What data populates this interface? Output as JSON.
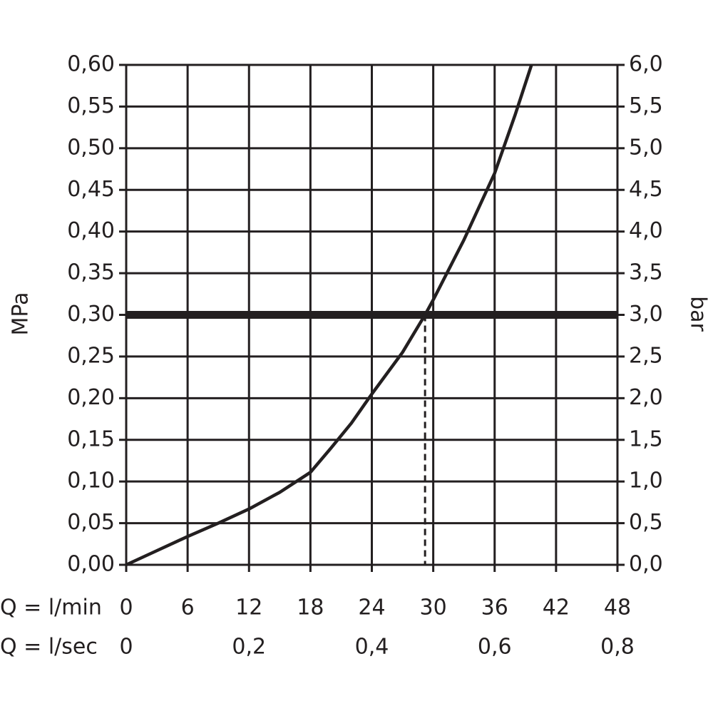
{
  "chart_data": {
    "type": "line",
    "y_label": "MPa",
    "y2_label": "bar",
    "x_label": "Q = l/min",
    "x2_label": "Q = l/sec",
    "series": [
      {
        "color": "#231f20",
        "x": [
          0,
          3,
          6,
          9,
          12,
          15,
          18,
          20,
          22,
          24,
          27,
          29.2,
          30,
          33,
          36,
          38,
          39.6
        ],
        "values": [
          0,
          0.017,
          0.034,
          0.05,
          0.067,
          0.087,
          0.111,
          0.14,
          0.17,
          0.205,
          0.255,
          0.3,
          0.318,
          0.39,
          0.47,
          0.54,
          0.6
        ]
      }
    ],
    "reference": {
      "y": 0.3,
      "x": 29.2
    },
    "xlim": [
      0,
      48
    ],
    "xticks": [
      0,
      6,
      12,
      18,
      24,
      30,
      36,
      42,
      48
    ],
    "x2lim": [
      0,
      0.8
    ],
    "x2ticks": [
      0,
      {
        "value": 0.2,
        "label": "0,2"
      },
      {
        "value": 0.4,
        "label": "0,4"
      },
      {
        "value": 0.6,
        "label": "0,6"
      },
      {
        "value": 0.8,
        "label": "0,8"
      }
    ],
    "ylim": [
      0,
      0.6
    ],
    "yticks": [
      {
        "value": 0,
        "label": "0,00"
      },
      {
        "value": 0.05,
        "label": "0,05"
      },
      {
        "value": 0.1,
        "label": "0,10"
      },
      {
        "value": 0.15,
        "label": "0,15"
      },
      {
        "value": 0.2,
        "label": "0,20"
      },
      {
        "value": 0.25,
        "label": "0,25"
      },
      {
        "value": 0.3,
        "label": "0,30"
      },
      {
        "value": 0.35,
        "label": "0,35"
      },
      {
        "value": 0.4,
        "label": "0,40"
      },
      {
        "value": 0.45,
        "label": "0,45"
      },
      {
        "value": 0.5,
        "label": "0,50"
      },
      {
        "value": 0.55,
        "label": "0,55"
      },
      {
        "value": 0.6,
        "label": "0,60"
      }
    ],
    "y2lim": [
      0,
      6
    ],
    "y2ticks": [
      {
        "value": 0,
        "label": "0,0"
      },
      {
        "value": 0.5,
        "label": "0,5"
      },
      {
        "value": 1,
        "label": "1,0"
      },
      {
        "value": 1.5,
        "label": "1,5"
      },
      {
        "value": 2,
        "label": "2,0"
      },
      {
        "value": 2.5,
        "label": "2,5"
      },
      {
        "value": 3,
        "label": "3,0"
      },
      {
        "value": 3.5,
        "label": "3,5"
      },
      {
        "value": 4,
        "label": "4,0"
      },
      {
        "value": 4.5,
        "label": "4,5"
      },
      {
        "value": 5,
        "label": "5,0"
      },
      {
        "value": 5.5,
        "label": "5,5"
      },
      {
        "value": 6,
        "label": "6,0"
      }
    ],
    "grid": true
  }
}
